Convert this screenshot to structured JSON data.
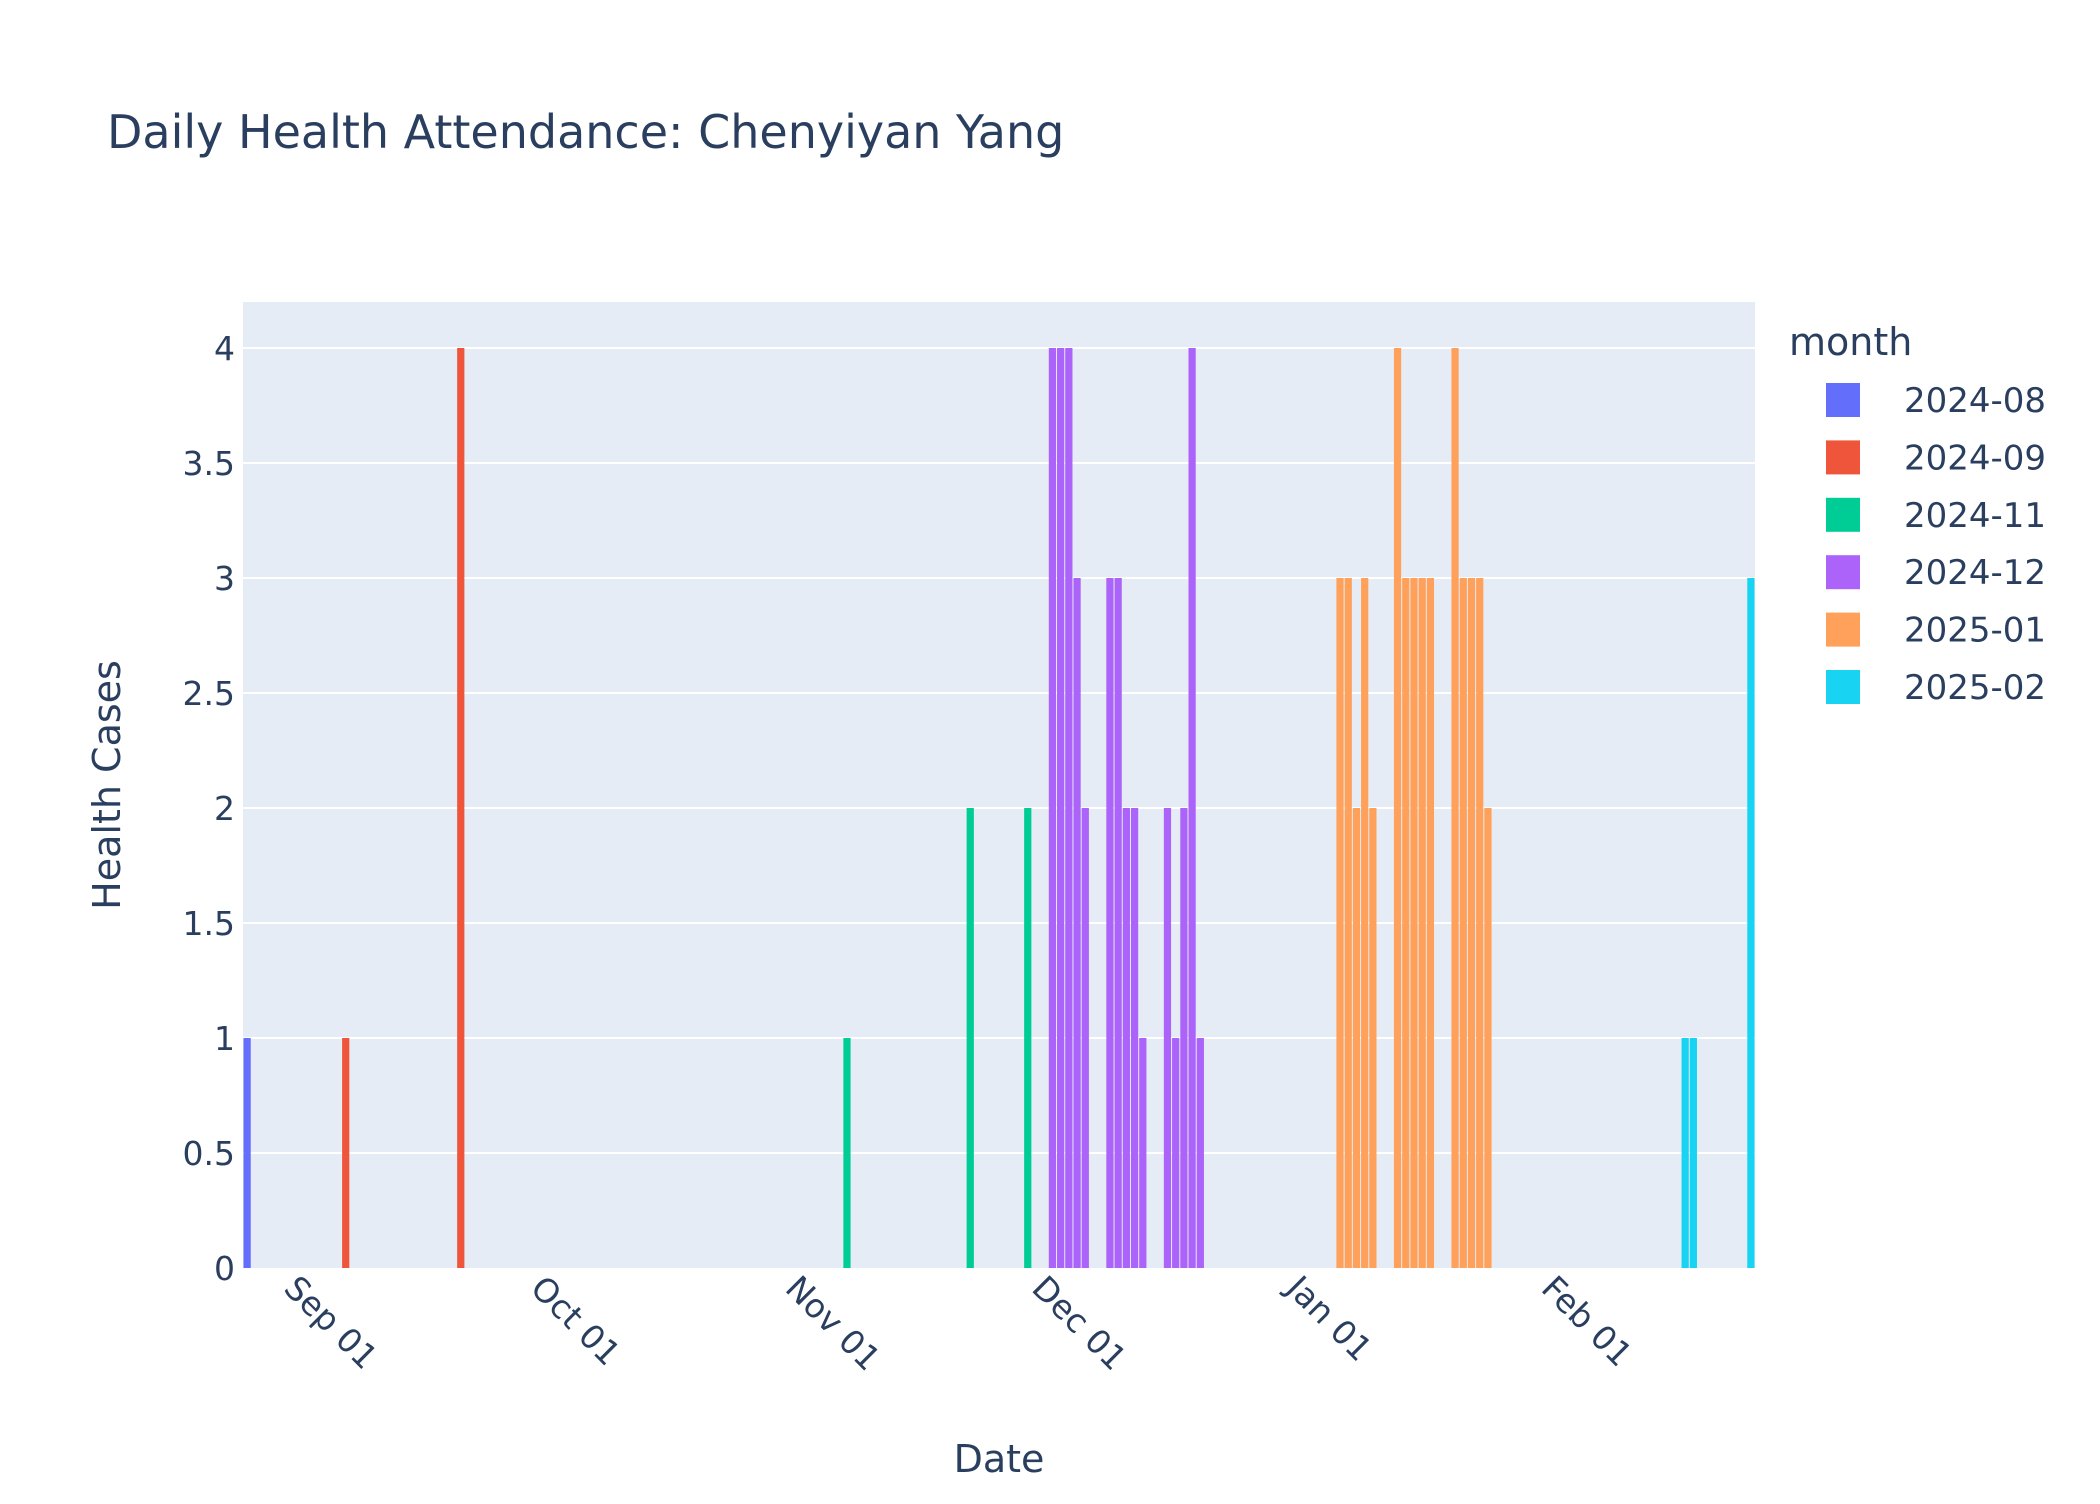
{
  "chart_data": {
    "type": "bar",
    "title": "Daily Health Attendance: Chenyiyan Yang",
    "xlabel": "Date",
    "ylabel": "Health Cases",
    "xlim": [
      "2024-08-26",
      "2025-02-25"
    ],
    "ylim": [
      0,
      4.2
    ],
    "y_ticks": [
      0,
      0.5,
      1,
      1.5,
      2,
      2.5,
      3,
      3.5,
      4
    ],
    "y_tick_labels": [
      "0",
      "0.5",
      "1",
      "1.5",
      "2",
      "2.5",
      "3",
      "3.5",
      "4"
    ],
    "x_ticks": [
      "2024-09-01",
      "2024-10-01",
      "2024-11-01",
      "2024-12-01",
      "2025-01-01",
      "2025-02-01"
    ],
    "x_tick_labels": [
      "Sep 01",
      "Oct 01",
      "Nov 01",
      "Dec 01",
      "Jan 01",
      "Feb 01"
    ],
    "legend_title": "month",
    "legend_position": "right",
    "grid": true,
    "plot_bgcolor": "#e5ecf6",
    "series": [
      {
        "name": "2024-08",
        "color": "#636efa",
        "x": [
          "2024-08-26"
        ],
        "y": [
          1
        ]
      },
      {
        "name": "2024-09",
        "color": "#ef553b",
        "x": [
          "2024-09-07",
          "2024-09-21"
        ],
        "y": [
          1,
          4
        ]
      },
      {
        "name": "2024-11",
        "color": "#00cc96",
        "x": [
          "2024-11-07",
          "2024-11-22",
          "2024-11-29"
        ],
        "y": [
          1,
          2,
          2
        ]
      },
      {
        "name": "2024-12",
        "color": "#ab63fa",
        "x": [
          "2024-12-02",
          "2024-12-03",
          "2024-12-04",
          "2024-12-05",
          "2024-12-06",
          "2024-12-09",
          "2024-12-10",
          "2024-12-11",
          "2024-12-12",
          "2024-12-13",
          "2024-12-16",
          "2024-12-17",
          "2024-12-18",
          "2024-12-19",
          "2024-12-20"
        ],
        "y": [
          4,
          4,
          4,
          3,
          2,
          3,
          3,
          2,
          2,
          1,
          2,
          1,
          2,
          4,
          1
        ]
      },
      {
        "name": "2025-01",
        "color": "#ffa15a",
        "x": [
          "2025-01-06",
          "2025-01-07",
          "2025-01-08",
          "2025-01-09",
          "2025-01-10",
          "2025-01-13",
          "2025-01-14",
          "2025-01-15",
          "2025-01-16",
          "2025-01-17",
          "2025-01-20",
          "2025-01-21",
          "2025-01-22",
          "2025-01-23",
          "2025-01-24"
        ],
        "y": [
          3,
          3,
          2,
          3,
          2,
          4,
          3,
          3,
          3,
          3,
          4,
          3,
          3,
          3,
          2
        ]
      },
      {
        "name": "2025-02",
        "color": "#19d3f3",
        "x": [
          "2025-02-17",
          "2025-02-18",
          "2025-02-25"
        ],
        "y": [
          1,
          1,
          3
        ]
      }
    ]
  }
}
